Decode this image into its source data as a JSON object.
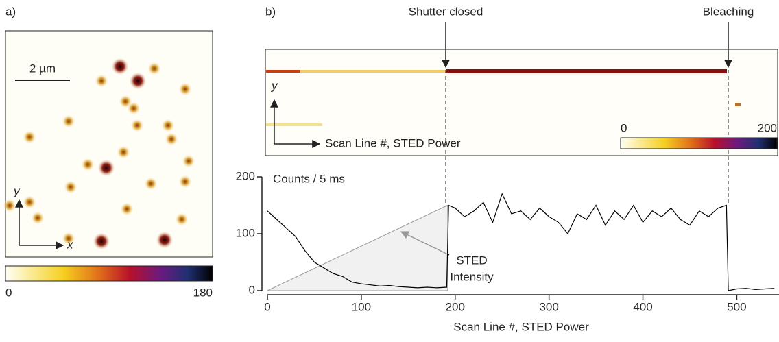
{
  "chart_data": [
    {
      "type": "image",
      "panel": "a)",
      "scale_bar": "2 µm",
      "x_axis": "x",
      "y_axis": "y",
      "colorbar": {
        "clim": [
          0,
          180
        ],
        "ticks": [
          0,
          180
        ]
      }
    },
    {
      "type": "image",
      "panel": "b)",
      "y_axis": "y",
      "x_axis": "Scan Line #, STED Power",
      "annotations": [
        "Shutter closed",
        "Bleaching"
      ],
      "colorbar": {
        "clim": [
          0,
          200
        ],
        "ticks": [
          0,
          200
        ]
      }
    },
    {
      "type": "line",
      "xlabel": "Scan Line #, STED Power",
      "ylabel": "Counts / 5 ms",
      "xlim": [
        0,
        545
      ],
      "ylim": [
        0,
        200
      ],
      "xticks": [
        0,
        100,
        200,
        300,
        400,
        500
      ],
      "yticks": [
        0,
        100,
        200
      ],
      "series": [
        {
          "color": "#000000",
          "x": [
            0,
            10,
            20,
            30,
            40,
            50,
            60,
            70,
            80,
            90,
            100,
            110,
            120,
            130,
            140,
            150,
            160,
            170,
            180,
            191,
            193,
            200,
            210,
            220,
            230,
            240,
            250,
            260,
            270,
            280,
            290,
            300,
            310,
            320,
            330,
            340,
            350,
            360,
            370,
            380,
            390,
            400,
            410,
            420,
            430,
            440,
            450,
            460,
            470,
            480,
            489,
            491,
            500,
            510,
            520,
            530,
            540
          ],
          "values": [
            140,
            125,
            110,
            95,
            70,
            50,
            40,
            30,
            25,
            15,
            12,
            10,
            8,
            9,
            7,
            6,
            5,
            6,
            5,
            6,
            150,
            145,
            130,
            140,
            155,
            120,
            170,
            135,
            140,
            125,
            145,
            130,
            120,
            100,
            135,
            125,
            150,
            115,
            140,
            125,
            150,
            120,
            140,
            130,
            145,
            125,
            115,
            140,
            130,
            145,
            150,
            0,
            3,
            4,
            2,
            3,
            4
          ]
        }
      ],
      "ramp": {
        "color": "#e8e8e8",
        "x": [
          0,
          192
        ],
        "values": [
          0,
          150
        ]
      },
      "annotation": [
        "STED",
        "Intensity"
      ]
    }
  ]
}
